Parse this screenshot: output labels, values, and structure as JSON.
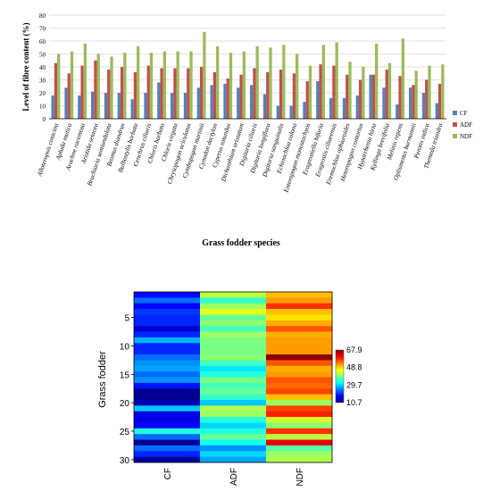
{
  "chart_data": [
    {
      "type": "bar",
      "title": "",
      "xlabel": "Grass fodder species",
      "ylabel": "Level of fibre content (%)",
      "ylim": [
        0,
        80
      ],
      "yticks": [
        0,
        10,
        20,
        30,
        40,
        50,
        60,
        70,
        80
      ],
      "grid": true,
      "legend_position": "right",
      "categories": [
        "Alloteropsis cimicina",
        "Apluda mutica",
        "Arachne racemosa",
        "Aristida setacea",
        "Brachiaria semiundulata",
        "Bromus diandrus",
        "Bulbostylis barbata",
        "Cenchrus ciliaris",
        "Chloris barbata",
        "Chloris virgata",
        "Chrysopogon aciculatus",
        "Cymbopogon martinii",
        "Cynodon dactylon",
        "Cyperus rotundus",
        "Dichanthium aristatum",
        "Digitaria ciliaris",
        "Digitaria longiflora",
        "Digitaria sanguinalis",
        "Echinochloa colona",
        "Enteropogon monostachyos",
        "Eragrostiella bifaria",
        "Eragrostis ciliarensis",
        "Eremochloa ophiuroides",
        "Heteropogon contortus",
        "Hyparrhenia hirta",
        "Kyllinga brevifolia",
        "Melinis repens",
        "Oplismenus burmannii",
        "Perotis indica",
        "Themeda triandra"
      ],
      "series": [
        {
          "name": "CF",
          "color": "#4f81bd",
          "values": [
            18,
            24,
            18,
            21,
            20,
            20,
            15,
            20,
            28,
            20,
            20,
            24,
            26,
            27,
            24,
            26,
            19,
            10,
            10,
            13,
            29,
            16,
            16,
            18,
            34,
            24,
            11,
            24,
            20,
            12
          ]
        },
        {
          "name": "ADF",
          "color": "#c0504d",
          "values": [
            43,
            35,
            41,
            45,
            38,
            40,
            36,
            41,
            39,
            39,
            39,
            40,
            36,
            31,
            34,
            39,
            36,
            38,
            35,
            29,
            42,
            41,
            34,
            30,
            34,
            38,
            33,
            26,
            30,
            27
          ]
        },
        {
          "name": "NDF",
          "color": "#9bbb59",
          "values": [
            50,
            52,
            58,
            50,
            48,
            51,
            56,
            51,
            52,
            52,
            52,
            67,
            56,
            51,
            52,
            56,
            55,
            57,
            50,
            41,
            57,
            59,
            44,
            40,
            58,
            43,
            62,
            37,
            41,
            42
          ]
        }
      ]
    },
    {
      "type": "heatmap",
      "title": "",
      "ylabel": "Grass fodder",
      "xlabel": "",
      "columns": [
        "CF",
        "ADF",
        "NDF"
      ],
      "row_range": [
        1,
        30
      ],
      "yticks": [
        5,
        10,
        15,
        20,
        25,
        30
      ],
      "colorbar_ticks": [
        67.9,
        48.8,
        29.7,
        10.7
      ],
      "colorbar_range": [
        10.7,
        67.9
      ],
      "colorscale": [
        "#00008f",
        "#0000ff",
        "#007fff",
        "#00ffff",
        "#7fff7f",
        "#ffff00",
        "#ff7f00",
        "#ff0000",
        "#7f0000"
      ],
      "cells": [
        [
          18,
          43,
          50
        ],
        [
          24,
          35,
          52
        ],
        [
          18,
          41,
          58
        ],
        [
          21,
          45,
          50
        ],
        [
          20,
          38,
          48
        ],
        [
          20,
          40,
          51
        ],
        [
          15,
          36,
          56
        ],
        [
          20,
          41,
          51
        ],
        [
          28,
          39,
          52
        ],
        [
          20,
          39,
          52
        ],
        [
          20,
          39,
          52
        ],
        [
          24,
          40,
          67
        ],
        [
          26,
          36,
          56
        ],
        [
          27,
          31,
          51
        ],
        [
          24,
          34,
          52
        ],
        [
          26,
          39,
          56
        ],
        [
          19,
          36,
          55
        ],
        [
          10,
          38,
          57
        ],
        [
          10,
          35,
          50
        ],
        [
          13,
          29,
          41
        ],
        [
          29,
          42,
          57
        ],
        [
          16,
          41,
          59
        ],
        [
          16,
          34,
          44
        ],
        [
          18,
          30,
          40
        ],
        [
          34,
          34,
          58
        ],
        [
          24,
          38,
          43
        ],
        [
          11,
          33,
          62
        ],
        [
          24,
          26,
          37
        ],
        [
          20,
          30,
          41
        ],
        [
          12,
          27,
          42
        ]
      ]
    }
  ]
}
